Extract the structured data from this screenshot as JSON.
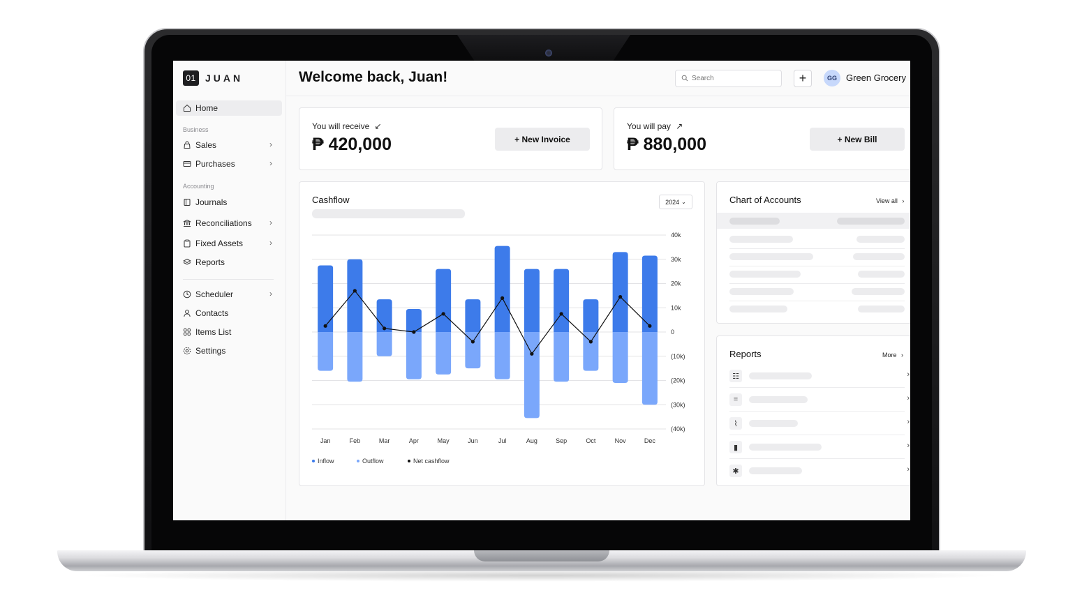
{
  "app": {
    "logo_badge": "01",
    "logo_text": "JUAN"
  },
  "sidebar": {
    "home": "Home",
    "section_business": "Business",
    "sales": "Sales",
    "purchases": "Purchases",
    "section_accounting": "Accounting",
    "journals": "Journals",
    "reconciliations": "Reconciliations",
    "fixed_assets": "Fixed Assets",
    "reports": "Reports",
    "scheduler": "Scheduler",
    "contacts": "Contacts",
    "items_list": "Items List",
    "settings": "Settings"
  },
  "header": {
    "title": "Welcome back, Juan!",
    "search_placeholder": "Search",
    "add_label": "+",
    "avatar_initials": "GG",
    "org_name": "Green Grocery"
  },
  "receive": {
    "label": "You will receive",
    "arrow": "↙",
    "amount": "₱ 420,000",
    "button": "+ New Invoice"
  },
  "pay": {
    "label": "You will pay",
    "arrow": "↗",
    "amount": "₱ 880,000",
    "button": "+ New Bill"
  },
  "cashflow": {
    "title": "Cashflow",
    "year": "2024",
    "legend": {
      "inflow": "Inflow",
      "outflow": "Outflow",
      "net": "Net cashflow"
    }
  },
  "chart_data": {
    "type": "bar",
    "title": "Cashflow",
    "categories": [
      "Jan",
      "Feb",
      "Mar",
      "Apr",
      "May",
      "Jun",
      "Jul",
      "Aug",
      "Sep",
      "Oct",
      "Nov",
      "Dec"
    ],
    "series": [
      {
        "name": "Inflow",
        "type": "bar",
        "color": "#3d7bea",
        "values": [
          27.5,
          30,
          13.5,
          9.5,
          26,
          13.5,
          35.5,
          26,
          26,
          13.5,
          33,
          31.5
        ]
      },
      {
        "name": "Outflow",
        "type": "bar",
        "color": "#7aa7fb",
        "values": [
          -16,
          -20.5,
          -10,
          -19.5,
          -17.5,
          -15,
          -19.5,
          -35.5,
          -20.5,
          -16,
          -21,
          -30
        ]
      },
      {
        "name": "Net cashflow",
        "type": "line",
        "color": "#111111",
        "values": [
          2.5,
          17,
          1.5,
          0,
          7.5,
          -4,
          14,
          -9,
          7.5,
          -4,
          14.5,
          2.5
        ]
      }
    ],
    "yticks": [
      "40k",
      "30k",
      "20k",
      "10k",
      "0",
      "(10k)",
      "(20k)",
      "(30k)",
      "(40k)"
    ],
    "ylim": [
      -40,
      40
    ],
    "grid": true,
    "legend": "bottom-left"
  },
  "accounts": {
    "title": "Chart of Accounts",
    "link": "View all",
    "chevron": "›"
  },
  "reports_card": {
    "title": "Reports",
    "link": "More",
    "chevron": "›",
    "items": [
      {
        "icon": "list-icon",
        "glyph": "☷"
      },
      {
        "icon": "equals-icon",
        "glyph": "="
      },
      {
        "icon": "trend-icon",
        "glyph": "⌇"
      },
      {
        "icon": "bar-chart-icon",
        "glyph": "▮"
      },
      {
        "icon": "asterisk-icon",
        "glyph": "✱"
      }
    ]
  }
}
